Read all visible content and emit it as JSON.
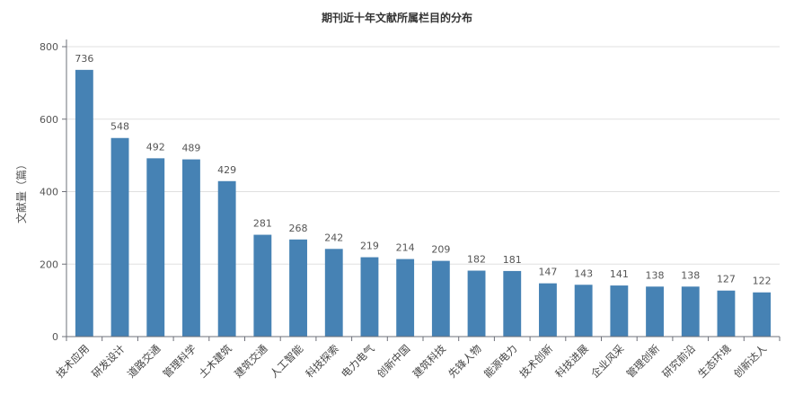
{
  "chart_data": {
    "type": "bar",
    "title": "期刊近十年文献所属栏目的分布",
    "xlabel": "",
    "ylabel": "文献量（篇）",
    "ylim": [
      0,
      800
    ],
    "yticks": [
      0,
      200,
      400,
      600,
      800
    ],
    "grid": true,
    "bar_color": "#4682b4",
    "categories": [
      "技术应用",
      "研发设计",
      "道路交通",
      "管理科学",
      "土木建筑",
      "建筑交通",
      "人工智能",
      "科技探索",
      "电力电气",
      "创新中国",
      "建筑科技",
      "先锋人物",
      "能源电力",
      "技术创新",
      "科技进展",
      "企业风采",
      "管理创新",
      "研究前沿",
      "生态环境",
      "创新达人"
    ],
    "values": [
      736,
      548,
      492,
      489,
      429,
      281,
      268,
      242,
      219,
      214,
      209,
      182,
      181,
      147,
      143,
      141,
      138,
      138,
      127,
      122
    ]
  }
}
